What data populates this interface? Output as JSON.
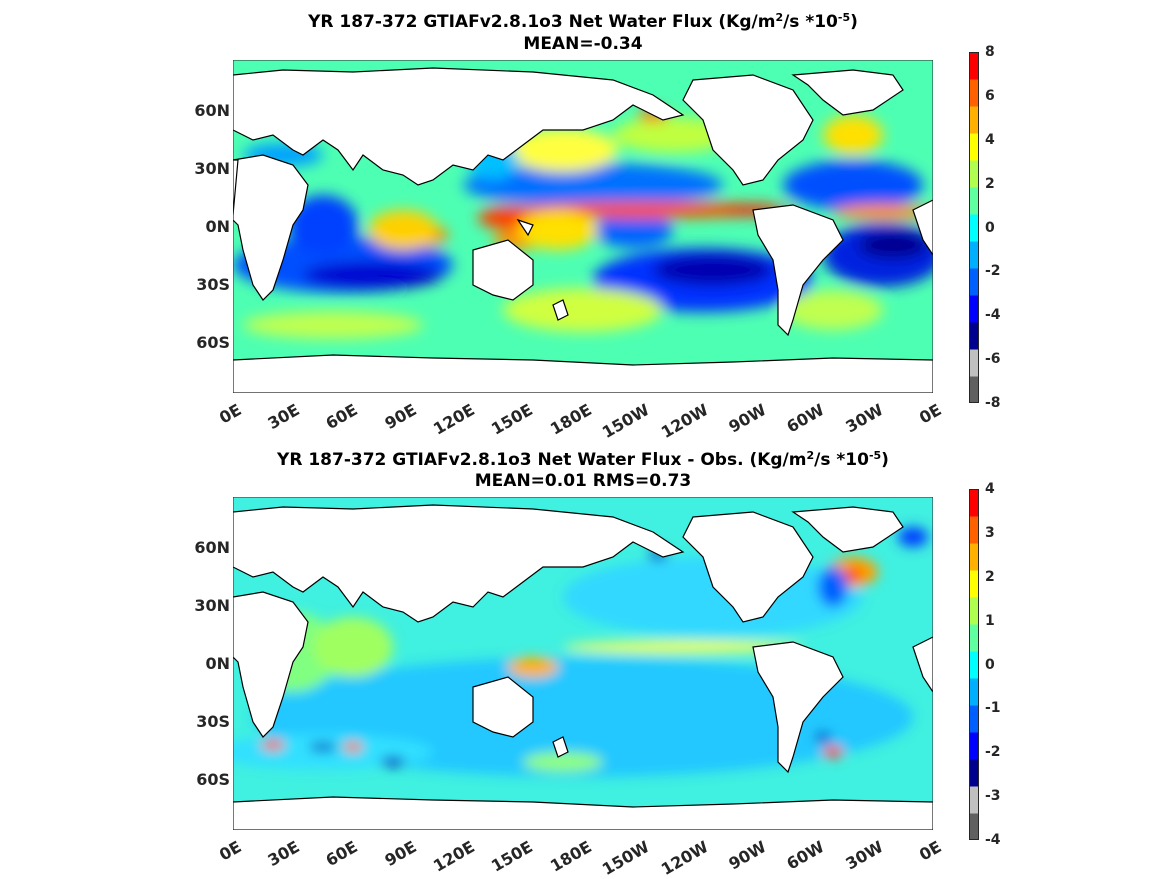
{
  "panels": [
    {
      "title_main": "YR 187-372 GTIAFv2.8.1o3  Net Water Flux (Kg/m",
      "title_sup1": "2",
      "title_mid": "/s *10",
      "title_sup2": "-5",
      "title_end": ")",
      "subtitle": "MEAN=-0.34",
      "colorbar_ticks": [
        "8",
        "6",
        "4",
        "2",
        "0",
        "-2",
        "-4",
        "-6",
        "-8"
      ]
    },
    {
      "title_main": "YR 187-372 GTIAFv2.8.1o3  Net Water Flux - Obs. (Kg/m",
      "title_sup1": "2",
      "title_mid": "/s *10",
      "title_sup2": "-5",
      "title_end": ")",
      "subtitle": "MEAN=0.01 RMS=0.73",
      "colorbar_ticks": [
        "4",
        "3",
        "2",
        "1",
        "0",
        "-1",
        "-2",
        "-3",
        "-4"
      ]
    }
  ],
  "lat_labels": [
    "60N",
    "30N",
    "0N",
    "30S",
    "60S"
  ],
  "lon_labels": [
    "0E",
    "30E",
    "60E",
    "90E",
    "120E",
    "150E",
    "180E",
    "150W",
    "120W",
    "90W",
    "60W",
    "30W",
    "0E"
  ],
  "colors": {
    "ocean_base": "#4dffb3",
    "land": "#ffffff",
    "coast": "#000000",
    "colormap": [
      "#606060",
      "#c0c0c0",
      "#00008f",
      "#0000ff",
      "#0060ff",
      "#00b0ff",
      "#00ffff",
      "#60ffa0",
      "#b0ff50",
      "#ffff00",
      "#ffb000",
      "#ff6000",
      "#ff0000"
    ]
  }
}
